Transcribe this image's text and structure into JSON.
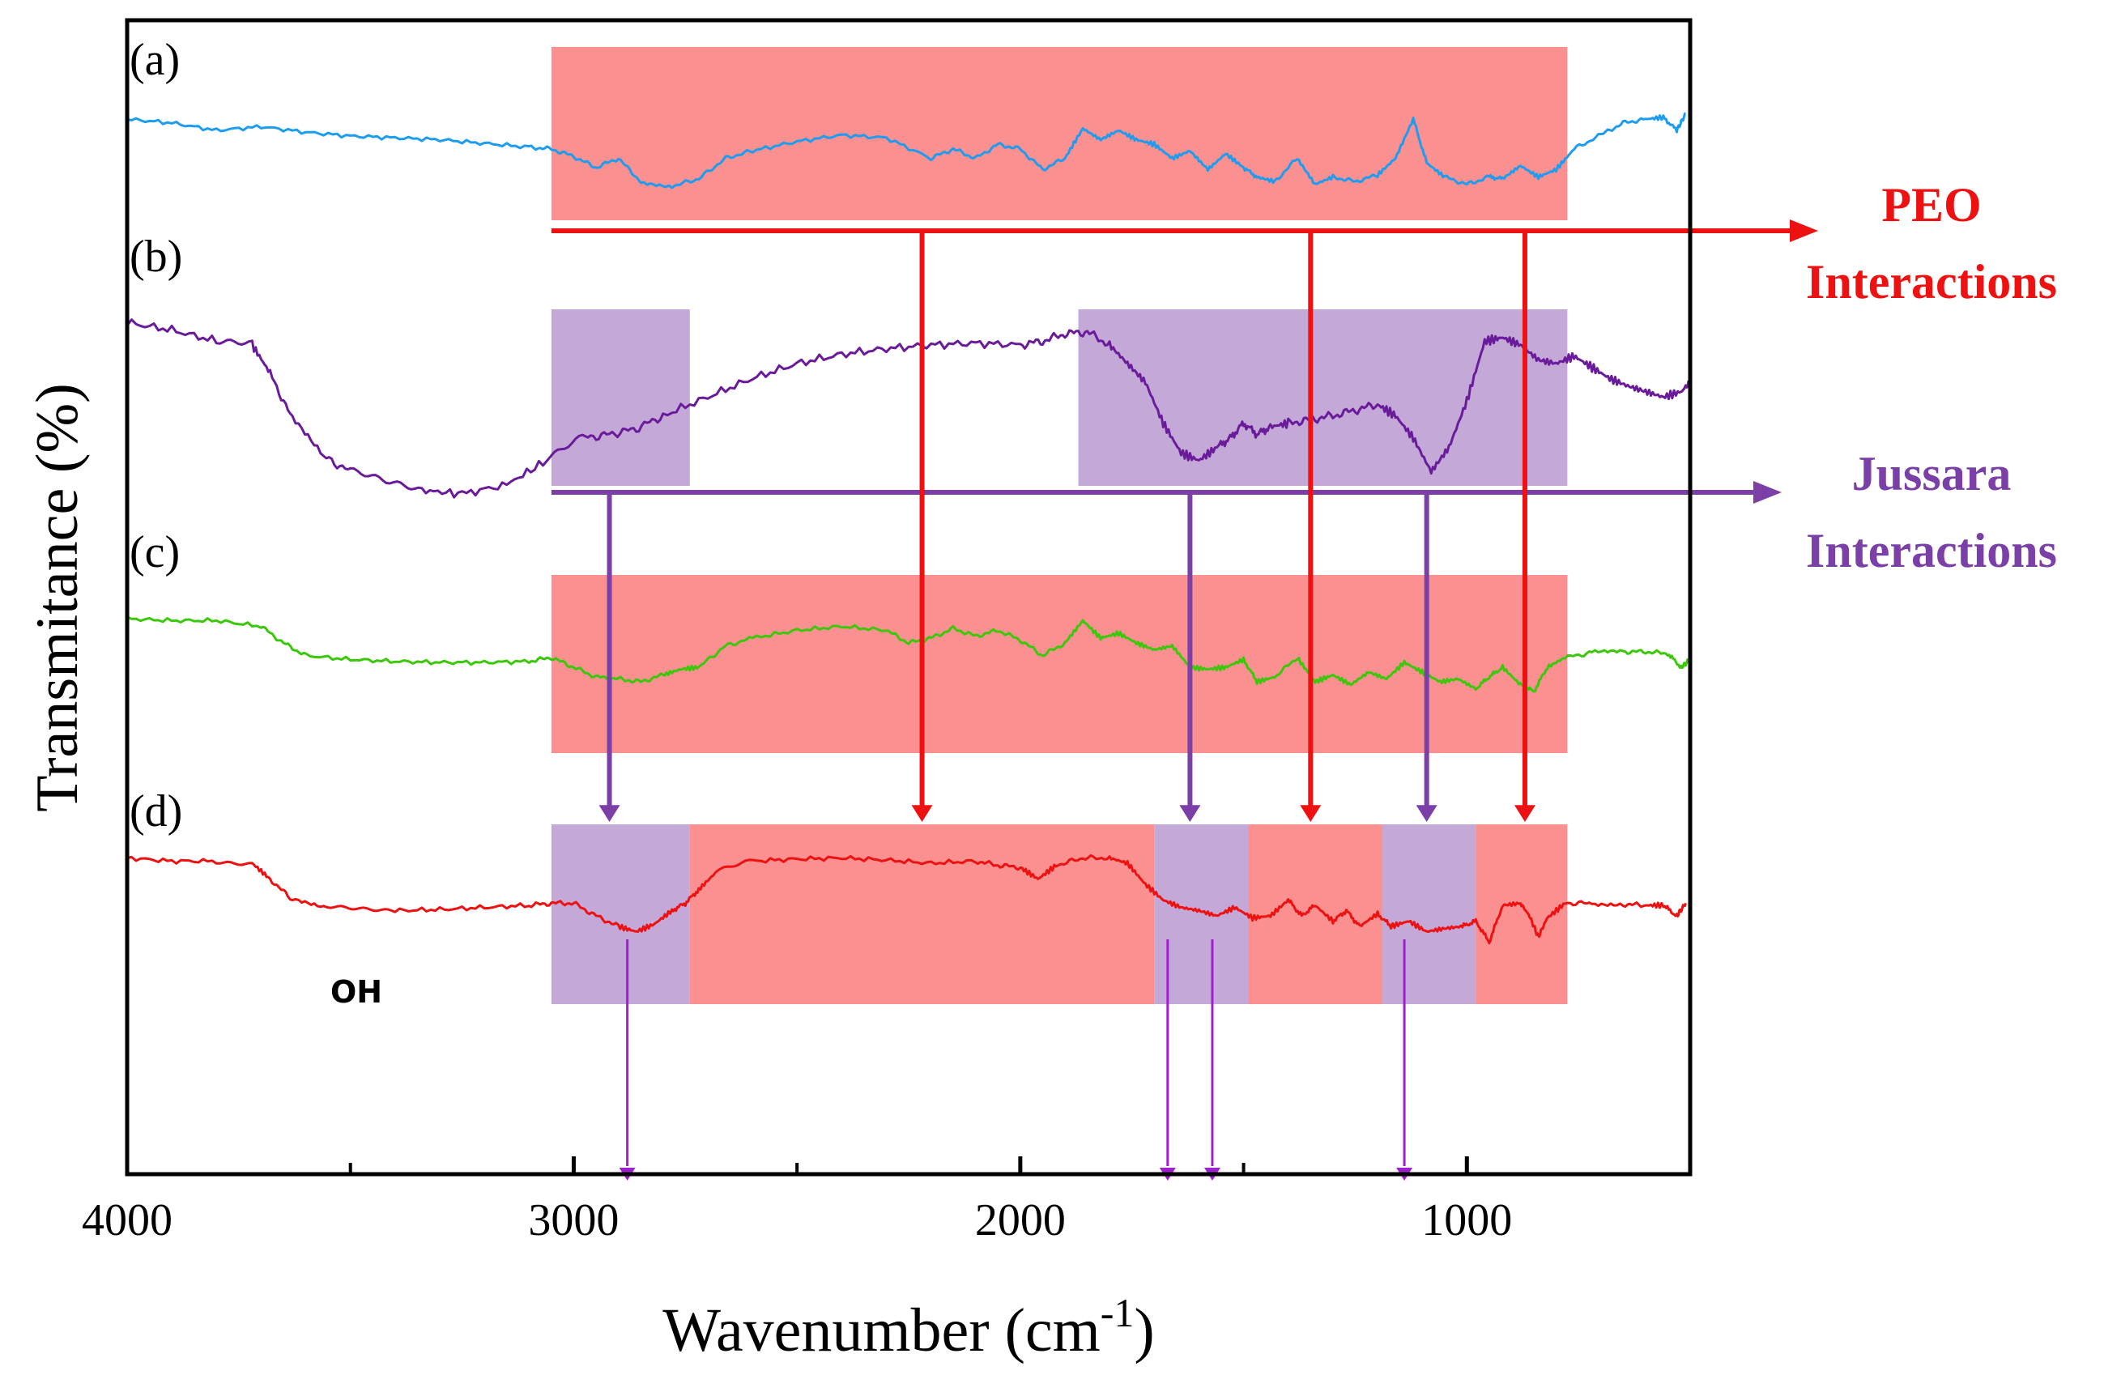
{
  "chart_data": {
    "type": "line",
    "title": "",
    "xlabel": "Wavenumber (cm",
    "xlabel_sup": "-1",
    "xlabel_close": ")",
    "ylabel": "Transmitance (%)",
    "xlim": [
      4000,
      500
    ],
    "x_reversed": true,
    "x_ticks": [
      4000,
      3000,
      2000,
      1000
    ],
    "x_tick_labels": [
      "4000",
      "3000",
      "2000",
      "1000"
    ],
    "x_minor_ticks": [
      3500,
      2500,
      1500,
      500
    ],
    "y_ticks": false,
    "grid": false,
    "series": [
      {
        "name": "(a)",
        "color": "#1e9cf0",
        "points": [
          [
            4000,
            0.72
          ],
          [
            3900,
            0.68
          ],
          [
            3800,
            0.6
          ],
          [
            3700,
            0.64
          ],
          [
            3600,
            0.58
          ],
          [
            3500,
            0.54
          ],
          [
            3400,
            0.52
          ],
          [
            3300,
            0.5
          ],
          [
            3200,
            0.46
          ],
          [
            3100,
            0.42
          ],
          [
            3050,
            0.4
          ],
          [
            3000,
            0.32
          ],
          [
            2950,
            0.2
          ],
          [
            2900,
            0.3
          ],
          [
            2850,
            0.05
          ],
          [
            2780,
            0.0
          ],
          [
            2720,
            0.08
          ],
          [
            2660,
            0.3
          ],
          [
            2600,
            0.38
          ],
          [
            2500,
            0.48
          ],
          [
            2400,
            0.55
          ],
          [
            2300,
            0.52
          ],
          [
            2200,
            0.3
          ],
          [
            2150,
            0.4
          ],
          [
            2100,
            0.3
          ],
          [
            2050,
            0.45
          ],
          [
            2000,
            0.4
          ],
          [
            1950,
            0.18
          ],
          [
            1900,
            0.3
          ],
          [
            1860,
            0.62
          ],
          [
            1820,
            0.5
          ],
          [
            1780,
            0.6
          ],
          [
            1740,
            0.5
          ],
          [
            1700,
            0.45
          ],
          [
            1660,
            0.3
          ],
          [
            1620,
            0.38
          ],
          [
            1580,
            0.18
          ],
          [
            1540,
            0.35
          ],
          [
            1500,
            0.2
          ],
          [
            1470,
            0.1
          ],
          [
            1430,
            0.05
          ],
          [
            1380,
            0.3
          ],
          [
            1340,
            0.02
          ],
          [
            1300,
            0.1
          ],
          [
            1250,
            0.05
          ],
          [
            1200,
            0.12
          ],
          [
            1160,
            0.3
          ],
          [
            1120,
            0.72
          ],
          [
            1090,
            0.25
          ],
          [
            1050,
            0.1
          ],
          [
            1000,
            0.02
          ],
          [
            950,
            0.1
          ],
          [
            920,
            0.08
          ],
          [
            880,
            0.22
          ],
          [
            840,
            0.1
          ],
          [
            800,
            0.18
          ],
          [
            760,
            0.4
          ],
          [
            700,
            0.55
          ],
          [
            650,
            0.68
          ],
          [
            600,
            0.72
          ],
          [
            560,
            0.74
          ],
          [
            530,
            0.6
          ],
          [
            510,
            0.78
          ]
        ]
      },
      {
        "name": "(b)",
        "color": "#6a1b9a",
        "points": [
          [
            4000,
            0.92
          ],
          [
            3900,
            0.88
          ],
          [
            3800,
            0.82
          ],
          [
            3720,
            0.8
          ],
          [
            3680,
            0.65
          ],
          [
            3630,
            0.4
          ],
          [
            3560,
            0.2
          ],
          [
            3500,
            0.12
          ],
          [
            3420,
            0.06
          ],
          [
            3340,
            0.02
          ],
          [
            3250,
            0.0
          ],
          [
            3150,
            0.05
          ],
          [
            3060,
            0.18
          ],
          [
            2980,
            0.3
          ],
          [
            2920,
            0.32
          ],
          [
            2860,
            0.35
          ],
          [
            2800,
            0.42
          ],
          [
            2700,
            0.52
          ],
          [
            2600,
            0.62
          ],
          [
            2500,
            0.7
          ],
          [
            2400,
            0.75
          ],
          [
            2300,
            0.78
          ],
          [
            2200,
            0.8
          ],
          [
            2100,
            0.81
          ],
          [
            2000,
            0.8
          ],
          [
            1950,
            0.82
          ],
          [
            1900,
            0.86
          ],
          [
            1850,
            0.87
          ],
          [
            1800,
            0.8
          ],
          [
            1760,
            0.7
          ],
          [
            1720,
            0.6
          ],
          [
            1680,
            0.38
          ],
          [
            1640,
            0.22
          ],
          [
            1600,
            0.18
          ],
          [
            1560,
            0.25
          ],
          [
            1530,
            0.3
          ],
          [
            1500,
            0.38
          ],
          [
            1470,
            0.32
          ],
          [
            1440,
            0.36
          ],
          [
            1400,
            0.38
          ],
          [
            1350,
            0.4
          ],
          [
            1300,
            0.42
          ],
          [
            1250,
            0.45
          ],
          [
            1200,
            0.48
          ],
          [
            1160,
            0.42
          ],
          [
            1120,
            0.3
          ],
          [
            1080,
            0.12
          ],
          [
            1040,
            0.25
          ],
          [
            1000,
            0.5
          ],
          [
            960,
            0.82
          ],
          [
            920,
            0.84
          ],
          [
            880,
            0.8
          ],
          [
            840,
            0.72
          ],
          [
            800,
            0.7
          ],
          [
            760,
            0.74
          ],
          [
            720,
            0.68
          ],
          [
            680,
            0.62
          ],
          [
            640,
            0.58
          ],
          [
            600,
            0.55
          ],
          [
            560,
            0.52
          ],
          [
            520,
            0.55
          ],
          [
            500,
            0.6
          ]
        ]
      },
      {
        "name": "(c)",
        "color": "#3cc80a",
        "points": [
          [
            4000,
            0.8
          ],
          [
            3900,
            0.78
          ],
          [
            3800,
            0.78
          ],
          [
            3700,
            0.72
          ],
          [
            3650,
            0.55
          ],
          [
            3600,
            0.42
          ],
          [
            3500,
            0.38
          ],
          [
            3400,
            0.36
          ],
          [
            3300,
            0.35
          ],
          [
            3200,
            0.35
          ],
          [
            3100,
            0.36
          ],
          [
            3050,
            0.4
          ],
          [
            3000,
            0.3
          ],
          [
            2950,
            0.2
          ],
          [
            2900,
            0.18
          ],
          [
            2850,
            0.15
          ],
          [
            2800,
            0.22
          ],
          [
            2760,
            0.28
          ],
          [
            2720,
            0.3
          ],
          [
            2660,
            0.52
          ],
          [
            2600,
            0.6
          ],
          [
            2500,
            0.68
          ],
          [
            2400,
            0.72
          ],
          [
            2300,
            0.68
          ],
          [
            2250,
            0.55
          ],
          [
            2200,
            0.6
          ],
          [
            2150,
            0.7
          ],
          [
            2100,
            0.62
          ],
          [
            2050,
            0.68
          ],
          [
            2000,
            0.58
          ],
          [
            1950,
            0.42
          ],
          [
            1900,
            0.55
          ],
          [
            1860,
            0.78
          ],
          [
            1820,
            0.6
          ],
          [
            1780,
            0.65
          ],
          [
            1740,
            0.55
          ],
          [
            1700,
            0.48
          ],
          [
            1660,
            0.52
          ],
          [
            1620,
            0.3
          ],
          [
            1580,
            0.28
          ],
          [
            1540,
            0.3
          ],
          [
            1500,
            0.38
          ],
          [
            1470,
            0.15
          ],
          [
            1430,
            0.2
          ],
          [
            1380,
            0.4
          ],
          [
            1340,
            0.15
          ],
          [
            1300,
            0.22
          ],
          [
            1260,
            0.12
          ],
          [
            1220,
            0.25
          ],
          [
            1180,
            0.18
          ],
          [
            1140,
            0.35
          ],
          [
            1100,
            0.25
          ],
          [
            1060,
            0.15
          ],
          [
            1020,
            0.18
          ],
          [
            980,
            0.08
          ],
          [
            950,
            0.2
          ],
          [
            920,
            0.3
          ],
          [
            880,
            0.12
          ],
          [
            850,
            0.05
          ],
          [
            820,
            0.3
          ],
          [
            780,
            0.4
          ],
          [
            720,
            0.45
          ],
          [
            650,
            0.46
          ],
          [
            600,
            0.46
          ],
          [
            550,
            0.44
          ],
          [
            520,
            0.3
          ],
          [
            500,
            0.38
          ]
        ]
      },
      {
        "name": "(d)",
        "color": "#ee1111",
        "points": [
          [
            4000,
            0.85
          ],
          [
            3900,
            0.82
          ],
          [
            3800,
            0.82
          ],
          [
            3720,
            0.8
          ],
          [
            3680,
            0.65
          ],
          [
            3630,
            0.45
          ],
          [
            3560,
            0.38
          ],
          [
            3480,
            0.36
          ],
          [
            3400,
            0.35
          ],
          [
            3300,
            0.36
          ],
          [
            3200,
            0.38
          ],
          [
            3100,
            0.4
          ],
          [
            3050,
            0.42
          ],
          [
            3000,
            0.42
          ],
          [
            2950,
            0.3
          ],
          [
            2900,
            0.2
          ],
          [
            2860,
            0.15
          ],
          [
            2820,
            0.22
          ],
          [
            2780,
            0.35
          ],
          [
            2750,
            0.42
          ],
          [
            2720,
            0.55
          ],
          [
            2680,
            0.72
          ],
          [
            2600,
            0.82
          ],
          [
            2500,
            0.84
          ],
          [
            2400,
            0.85
          ],
          [
            2300,
            0.83
          ],
          [
            2200,
            0.8
          ],
          [
            2100,
            0.82
          ],
          [
            2050,
            0.78
          ],
          [
            2000,
            0.76
          ],
          [
            1960,
            0.65
          ],
          [
            1920,
            0.78
          ],
          [
            1860,
            0.85
          ],
          [
            1800,
            0.85
          ],
          [
            1760,
            0.8
          ],
          [
            1720,
            0.6
          ],
          [
            1680,
            0.45
          ],
          [
            1640,
            0.38
          ],
          [
            1600,
            0.35
          ],
          [
            1560,
            0.3
          ],
          [
            1520,
            0.38
          ],
          [
            1480,
            0.28
          ],
          [
            1440,
            0.3
          ],
          [
            1400,
            0.45
          ],
          [
            1370,
            0.3
          ],
          [
            1340,
            0.4
          ],
          [
            1300,
            0.25
          ],
          [
            1270,
            0.35
          ],
          [
            1240,
            0.2
          ],
          [
            1200,
            0.32
          ],
          [
            1170,
            0.2
          ],
          [
            1130,
            0.25
          ],
          [
            1090,
            0.15
          ],
          [
            1050,
            0.18
          ],
          [
            1010,
            0.2
          ],
          [
            980,
            0.25
          ],
          [
            950,
            0.05
          ],
          [
            920,
            0.4
          ],
          [
            880,
            0.42
          ],
          [
            860,
            0.3
          ],
          [
            840,
            0.1
          ],
          [
            820,
            0.28
          ],
          [
            780,
            0.42
          ],
          [
            720,
            0.42
          ],
          [
            650,
            0.41
          ],
          [
            600,
            0.4
          ],
          [
            560,
            0.4
          ],
          [
            530,
            0.3
          ],
          [
            510,
            0.42
          ]
        ]
      }
    ],
    "curve_labels": [
      "(a)",
      "(b)",
      "(c)",
      "(d)"
    ],
    "annotations": {
      "oh_label": "OH",
      "peo_label_line1": "PEO",
      "peo_label_line2": "Interactions",
      "peo_color": "#ee1111",
      "jussara_label_line1": "Jussara",
      "jussara_label_line2": "Interactions",
      "jussara_color": "#7b3fa8",
      "peo_region_color": "#fa9090",
      "jussara_region_color": "#c3a8d8",
      "small_arrow_color": "#a020d0"
    },
    "highlight_regions": [
      {
        "curve": "(a)",
        "from": 3050,
        "to": 775,
        "kind": "peo"
      },
      {
        "curve": "(b)",
        "from": 3050,
        "to": 2740,
        "kind": "jussara"
      },
      {
        "curve": "(b)",
        "from": 1870,
        "to": 775,
        "kind": "jussara"
      },
      {
        "curve": "(c)",
        "from": 3050,
        "to": 775,
        "kind": "peo"
      },
      {
        "curve": "(d)",
        "from": 3050,
        "to": 2740,
        "kind": "jussara"
      },
      {
        "curve": "(d)",
        "from": 2740,
        "to": 1700,
        "kind": "peo"
      },
      {
        "curve": "(d)",
        "from": 1700,
        "to": 1490,
        "kind": "jussara"
      },
      {
        "curve": "(d)",
        "from": 1490,
        "to": 1190,
        "kind": "peo"
      },
      {
        "curve": "(d)",
        "from": 1190,
        "to": 980,
        "kind": "jussara"
      },
      {
        "curve": "(d)",
        "from": 980,
        "to": 775,
        "kind": "peo"
      }
    ],
    "peo_arrows_at": [
      2220,
      1350,
      870
    ],
    "jussara_arrows_at": [
      2920,
      1620,
      1090
    ],
    "small_arrows_at": [
      2880,
      1670,
      1570,
      1140
    ]
  }
}
